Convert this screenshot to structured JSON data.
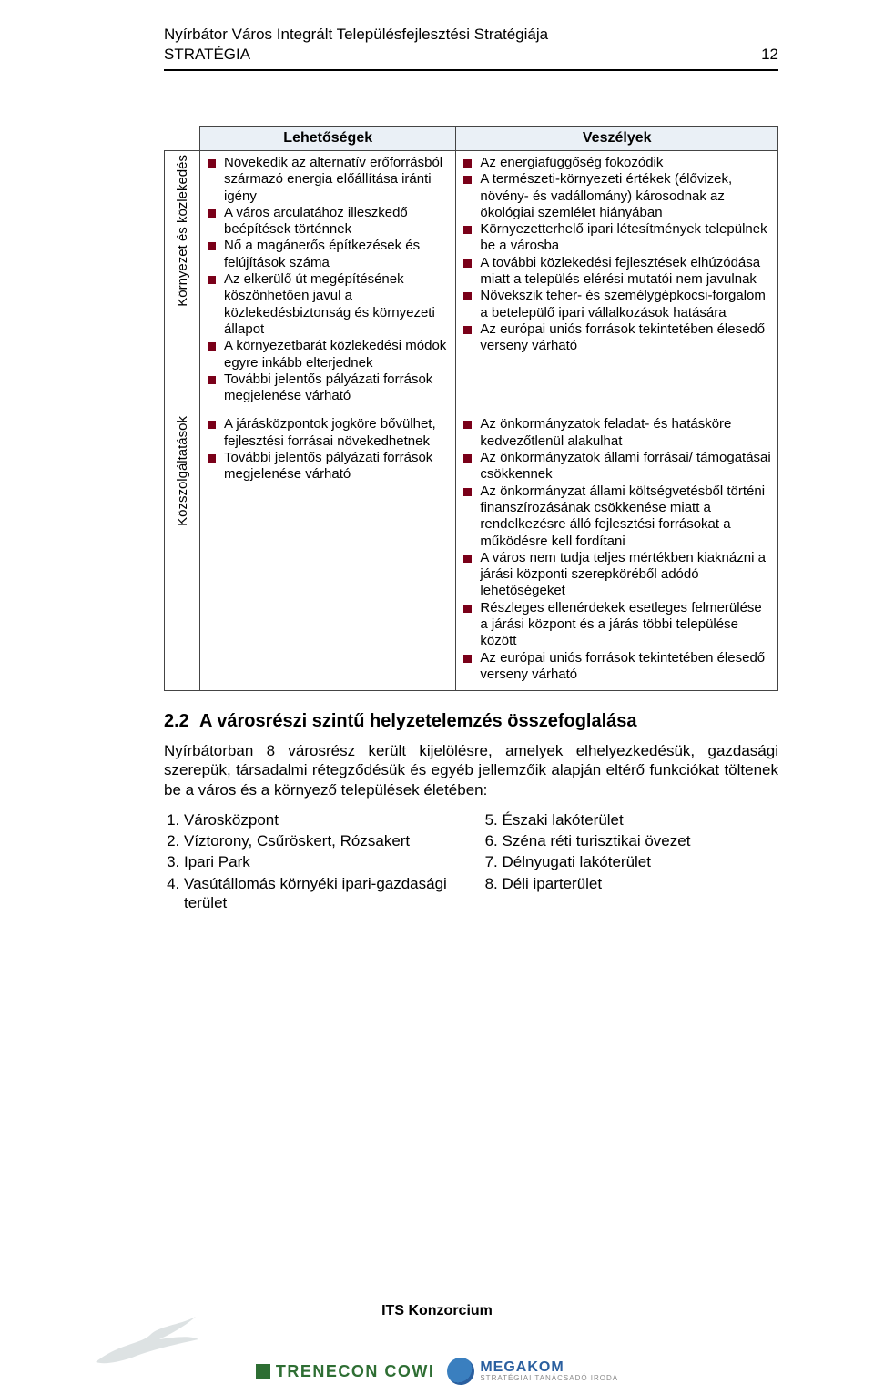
{
  "header": {
    "title": "Nyírbátor Város Integrált Településfejlesztési Stratégiája",
    "subtitle": "STRATÉGIA",
    "page_number": "12"
  },
  "table": {
    "col_headers": [
      "Lehetőségek",
      "Veszélyek"
    ],
    "row_labels": [
      "Környezet és közlekedés",
      "Közszolgáltatások"
    ],
    "cells": {
      "r1c1": [
        "Növekedik az alternatív erőforrásból származó energia előállítása iránti igény",
        "A város arculatához illeszkedő beépítések történnek",
        "Nő a magánerős építkezések és felújítások száma",
        "Az elkerülő út megépítésének köszönhetően javul a közlekedésbiztonság és környezeti állapot",
        "A környezetbarát közlekedési módok egyre inkább elterjednek",
        "További jelentős pályázati források megjelenése várható"
      ],
      "r1c2": [
        "Az energiafüggőség fokozódik",
        "A természeti-környezeti értékek (élővizek, növény- és vadállomány) károsodnak az ökológiai szemlélet hiányában",
        "Környezetterhelő ipari létesítmények települnek be a városba",
        "A további közlekedési fejlesztések elhúzódása miatt a település elérési mutatói nem javulnak",
        "Növekszik teher- és személygépkocsi-forgalom a betelepülő ipari vállalkozások hatására",
        "Az európai uniós források tekintetében élesedő verseny várható"
      ],
      "r2c1": [
        "A járásközpontok jogköre bővülhet, fejlesztési forrásai növekedhetnek",
        "További jelentős pályázati források megjelenése várható"
      ],
      "r2c2": [
        "Az önkormányzatok feladat- és hatásköre kedvezőtlenül alakulhat",
        "Az önkormányzatok állami forrásai/ támogatásai csökkennek",
        "Az önkormányzat állami költségvetésből történi finanszírozásának csökkenése miatt a rendelkezésre álló fejlesztési forrásokat a működésre kell fordítani",
        "A város nem tudja teljes mértékben kiaknázni a járási központi szerepköréből adódó lehetőségeket",
        "Részleges ellenérdekek esetleges felmerülése a járási központ és a járás többi települése között",
        "Az európai uniós források tekintetében élesedő verseny várható"
      ]
    },
    "bullet_color": "#7a0019",
    "header_bg": "#eaf0f6",
    "border_color": "#444444"
  },
  "section": {
    "heading_number": "2.2",
    "heading_text": "A városrészi szintű helyzetelemzés összefoglalása",
    "paragraph": "Nyírbátorban 8 városrész került kijelölésre, amelyek elhelyezkedésük, gazdasági szerepük, társadalmi rétegződésük és egyéb jellemzőik alapján eltérő funkciókat töltenek be a város és a környező települések életében:",
    "left_list": [
      "Városközpont",
      "Víztorony, Csűröskert, Rózsakert",
      "Ipari Park",
      "Vasútállomás környéki ipari-gazdasági terület"
    ],
    "right_list": [
      "Északi lakóterület",
      "Széna réti turisztikai övezet",
      "Délnyugati lakóterület",
      "Déli iparterület"
    ],
    "right_start": 5
  },
  "footer": {
    "label": "ITS Konzorcium",
    "logo1": "TRENECON COWI",
    "logo2_line1": "MEGAKOM",
    "logo2_line2": "STRATÉGIAI TANÁCSADÓ IRODA"
  },
  "colors": {
    "text": "#000000",
    "logo_green": "#2e6e33",
    "logo_blue": "#2a5f9f",
    "bird": "#cfd6d8"
  }
}
